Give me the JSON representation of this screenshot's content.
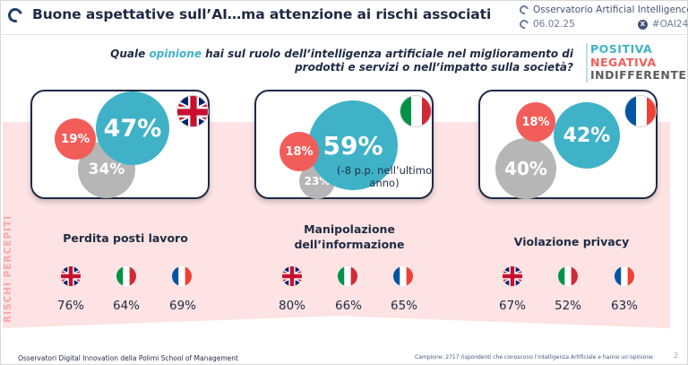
{
  "header": {
    "title": "Buone aspettative sull’AI…ma attenzione ai rischi associati",
    "org": "Osservatorio Artificial Intelligence",
    "date": "06.02.25",
    "hashtag": "#OAI24",
    "x_icon": "X"
  },
  "question": {
    "before": "Quale ",
    "highlight": "opinione",
    "after": " hai sul ruolo dell’intelligenza artificiale nel miglioramento di prodotti e servizi o nell’impatto sulla società?"
  },
  "legend": {
    "positive": "POSITIVA",
    "negative": "NEGATIVA",
    "indifferent": "INDIFFERENTE"
  },
  "colors": {
    "positive": "#3fb2c7",
    "negative": "#f25d59",
    "indifferent": "#b6b6b6",
    "band": "#fde3e3"
  },
  "opinion_cards": [
    {
      "country": "UK",
      "positive": "47%",
      "negative": "19%",
      "indifferent": "34%"
    },
    {
      "country": "Italy",
      "positive": "59%",
      "negative": "18%",
      "indifferent": "23%",
      "note": "(-8 p.p. nell’ultimo anno)"
    },
    {
      "country": "France",
      "positive": "42%",
      "negative": "18%",
      "indifferent": "40%"
    }
  ],
  "risks": {
    "band_label": "RISCHI PERCEPITI",
    "items": [
      {
        "title": "Perdita posti lavoro",
        "uk": "76%",
        "it": "64%",
        "fr": "69%"
      },
      {
        "title_line1": "Manipolazione",
        "title_line2": "dell’informazione",
        "uk": "80%",
        "it": "66%",
        "fr": "65%"
      },
      {
        "title": "Violazione privacy",
        "uk": "67%",
        "it": "52%",
        "fr": "63%"
      }
    ]
  },
  "footer": {
    "left": "Osservatori Digital Innovation della Polimi School of Management",
    "right": "Campione: 2717 rispondenti che conoscono l’intelligenza Artificiale e hanno un’opinione",
    "page": "2"
  }
}
